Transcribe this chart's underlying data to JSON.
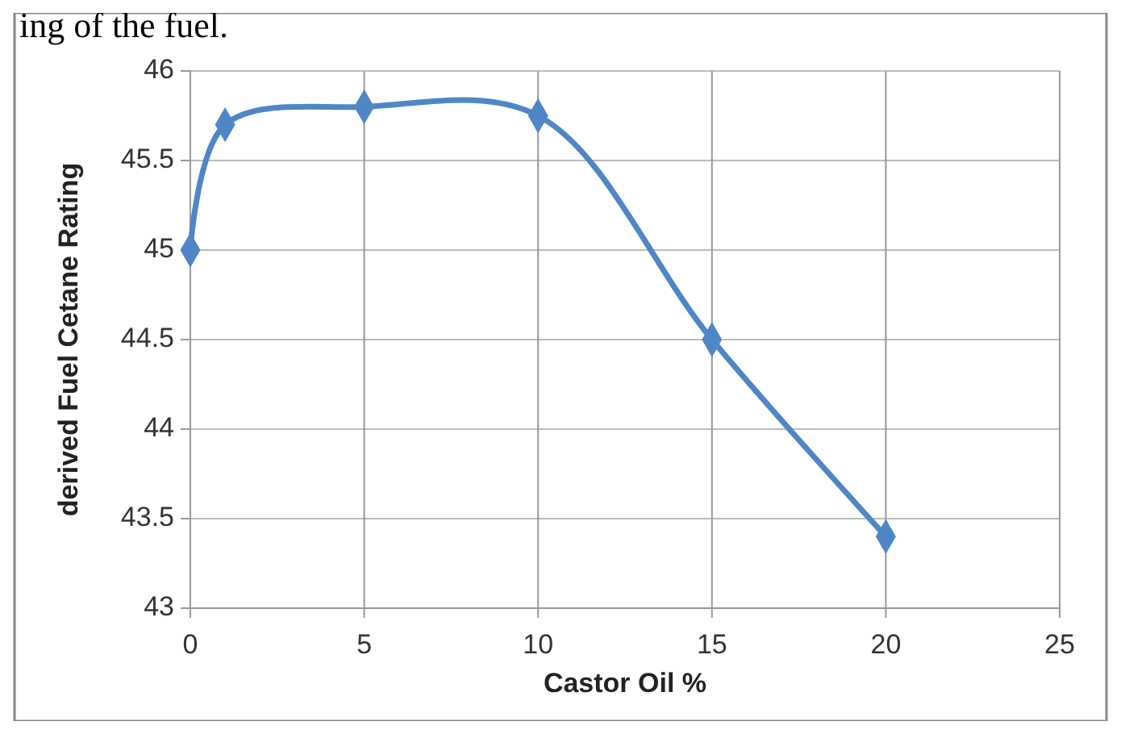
{
  "chart_data": {
    "type": "line",
    "xlabel": "Castor Oil %",
    "ylabel": "derived Fuel Cetane Rating",
    "x": [
      0,
      1,
      5,
      10,
      15,
      20
    ],
    "series": [
      {
        "color": "#4f86c6",
        "values": [
          45,
          45.7,
          45.8,
          45.75,
          44.5,
          43.4
        ]
      }
    ],
    "xlim": [
      0,
      25
    ],
    "xticks": [
      0,
      5,
      10,
      15,
      20,
      25
    ],
    "ylim": [
      43,
      46
    ],
    "yticks": [
      43,
      43.5,
      44,
      44.5,
      45,
      45.5,
      46
    ],
    "grid": true,
    "marker": "diamond",
    "line_style": "solid",
    "annotations": [
      "ing of the fuel."
    ]
  }
}
